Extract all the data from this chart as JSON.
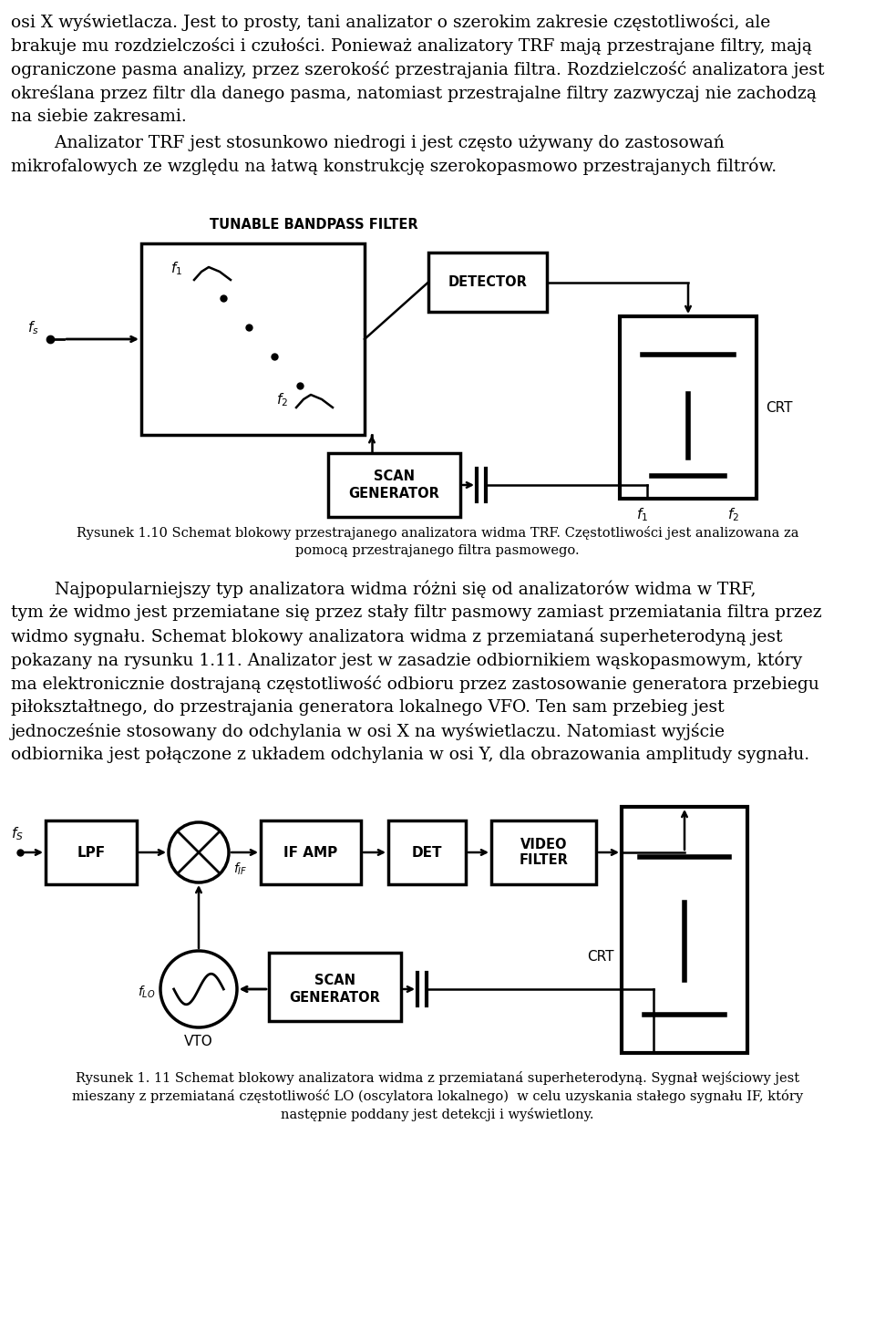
{
  "bg_color": "#ffffff",
  "text_color": "#000000",
  "para1_lines": [
    "osi X wyświetlacza. Jest to prosty, tani analizator o szerokim zakresie częstotliwości, ale",
    "brakuje mu rozdzielczości i czułości. Ponieważ analizatory TRF mają przestrajane filtry, mają",
    "ograniczone pasma analizy, przez szerokość przestrajania filtra. Rozdzielczość analizatora jest",
    "określana przez filtr dla danego pasma, natomiast przestrajalne filtry zazwyczaj nie zachodzą",
    "na siebie zakresami."
  ],
  "para2_lines": [
    "        Analizator TRF jest stosunkowo niedrogi i jest często używany do zastosowań",
    "mikrofalowych ze względu na łatwą konstrukcję szerokopasmowo przestrajanych filtrów."
  ],
  "fig1_caption_line1": "Rysunek 1.10 Schemat blokowy przestrajanego analizatora widma TRF. Częstotliwości jest analizowana za",
  "fig1_caption_line2": "pomocą przestrajanego filtra pasmowego.",
  "para3_lines": [
    "        Najpopularniejszy typ analizatora widma różni się od analizatorów widma w TRF,",
    "tym że widmo jest przemiatane się przez stały filtr pasmowy zamiast przemiatania filtra przez",
    "widmo sygnału. Schemat blokowy analizatora widma z przemiataná superheterodyną jest",
    "pokazany na rysunku 1.11. Analizator jest w zasadzie odbiornikiem wąskopasmowym, który",
    "ma elektronicznie dostrajaną częstotliwość odbioru przez zastosowanie generatora przebiegu",
    "piłokształtnego, do przestrajania generatora lokalnego VFO. Ten sam przebieg jest",
    "jednocześnie stosowany do odchylania w osi X na wyświetlaczu. Natomiast wyjście",
    "odbiornika jest połączone z układem odchylania w osi Y, dla obrazowania amplitudy sygnału."
  ],
  "fig2_caption_line1": "Rysunek 1. 11 Schemat blokowy analizatora widma z przemiataná superheterodyną. Sygnał wejściowy jest",
  "fig2_caption_line2": "mieszany z przemiataná częstotliwość LO (oscylatora lokalnego)  w celu uzyskania stałego sygnału IF, który",
  "fig2_caption_line3": "następnie poddany jest detekcji i wyświetlony."
}
